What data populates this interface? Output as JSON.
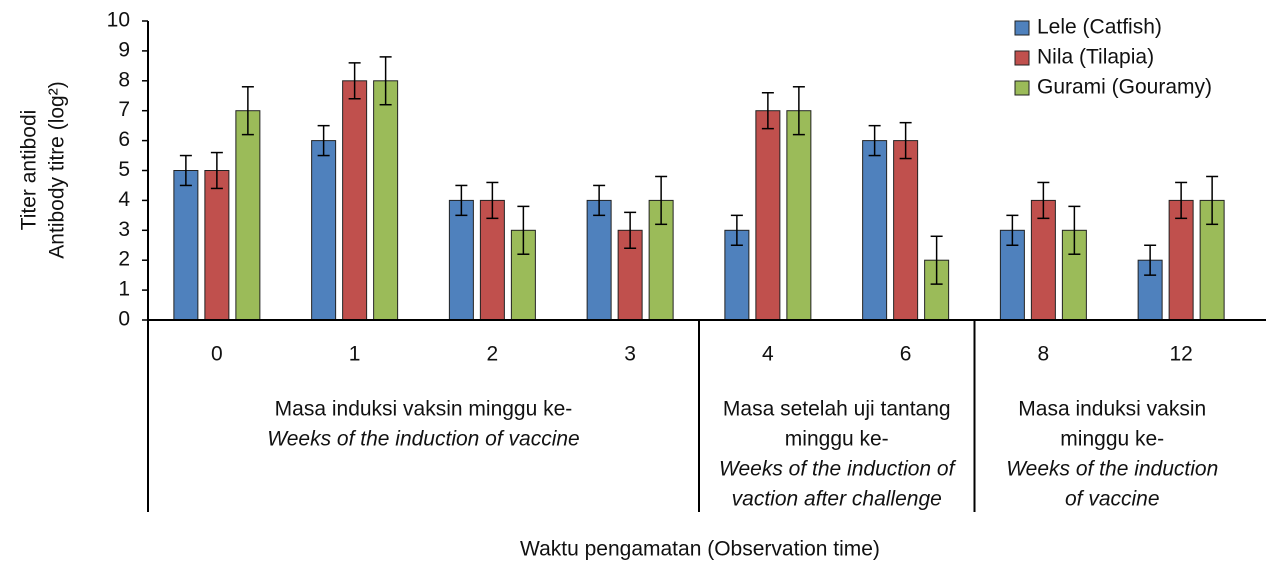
{
  "chart_data": {
    "type": "bar",
    "ylabel": [
      "Titer antibodi",
      "Antibody titre (log²)"
    ],
    "xlabel": "Waktu pengamatan (Observation time)",
    "category_groups": [
      {
        "categories": [
          "0",
          "1",
          "2",
          "3"
        ],
        "label": [
          "Masa induksi vaksin minggu ke-"
        ],
        "translation": [
          "Weeks of  the induction of vaccine"
        ]
      },
      {
        "categories": [
          "4",
          "6"
        ],
        "label": [
          "Masa setelah uji tantang",
          "minggu ke-"
        ],
        "translation": [
          "Weeks of  the induction of",
          "vaction after challenge"
        ]
      },
      {
        "categories": [
          "8",
          "12"
        ],
        "label": [
          "Masa induksi vaksin",
          "minggu ke-"
        ],
        "translation": [
          "Weeks of  the induction",
          "of vaccine"
        ]
      }
    ],
    "series": [
      {
        "name": "Lele (Catfish)",
        "color": "#4f81bd",
        "values": [
          5,
          6,
          4,
          4,
          3,
          6,
          3,
          2
        ],
        "errors": [
          0.5,
          0.5,
          0.5,
          0.5,
          0.5,
          0.5,
          0.5,
          0.5
        ]
      },
      {
        "name": "Nila (Tilapia)",
        "color": "#c0504d",
        "values": [
          5,
          8,
          4,
          3,
          7,
          6,
          4,
          4
        ],
        "errors": [
          0.6,
          0.6,
          0.6,
          0.6,
          0.6,
          0.6,
          0.6,
          0.6
        ]
      },
      {
        "name": "Gurami (Gouramy)",
        "color": "#9bbb59",
        "values": [
          7,
          8,
          3,
          4,
          7,
          2,
          3,
          4
        ],
        "errors": [
          0.8,
          0.8,
          0.8,
          0.8,
          0.8,
          0.8,
          0.8,
          0.8
        ]
      }
    ],
    "ylim": [
      0,
      10
    ],
    "yticks": [
      0,
      1,
      2,
      3,
      4,
      5,
      6,
      7,
      8,
      9,
      10
    ],
    "legend": "upper right"
  }
}
